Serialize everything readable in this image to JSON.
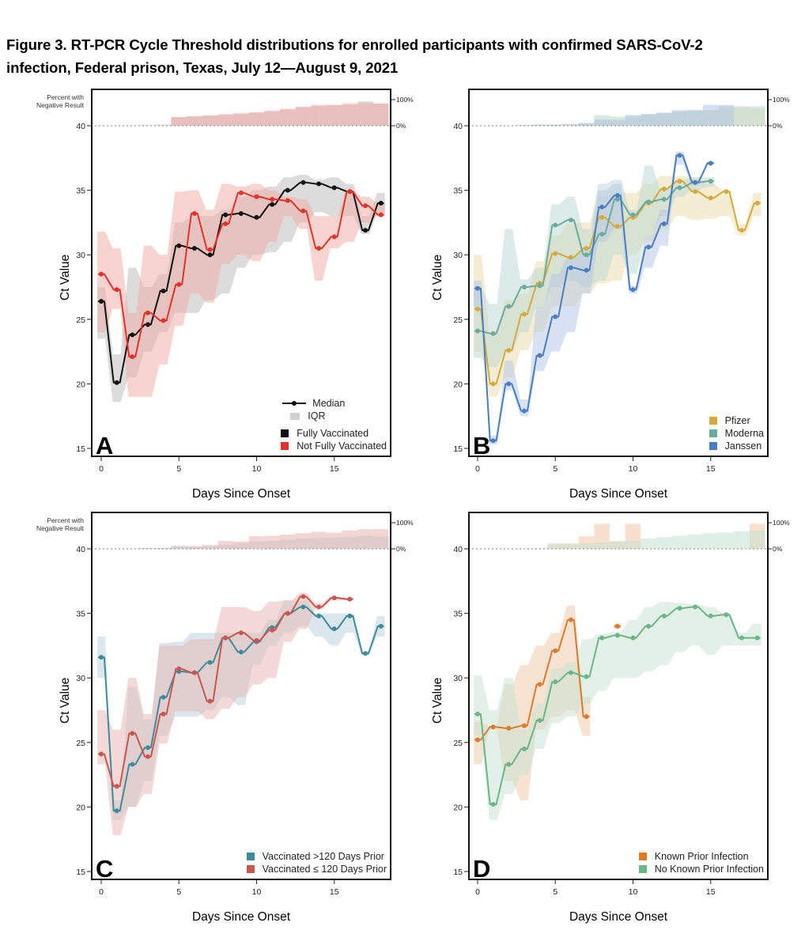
{
  "figure_title_line1": "Figure 3. RT-PCR Cycle Threshold distributions for enrolled participants with confirmed SARS-CoV-2",
  "figure_title_line2": "infection, Federal prison, Texas, July 12—August 9, 2021",
  "chart_data": [
    {
      "panel": "A",
      "type": "line",
      "xlabel": "Days Since Onset",
      "ylabel": "Ct Value",
      "top_label": "Percent with Negative Result",
      "right_ticks": [
        "100%",
        "0%"
      ],
      "xlim": [
        0,
        18
      ],
      "xticks": [
        0,
        5,
        10,
        15
      ],
      "ylim": [
        15,
        40
      ],
      "yticks": [
        15,
        20,
        25,
        30,
        35,
        40
      ],
      "legend_extra": {
        "median": "Median",
        "iqr": "IQR"
      },
      "series": [
        {
          "name": "Fully Vaccinated",
          "color": "#111111",
          "band": "#b9b9b9",
          "median": [
            26.4,
            20.1,
            23.8,
            24.6,
            27.2,
            30.7,
            30.5,
            30.0,
            33.1,
            33.2,
            32.9,
            33.9,
            35.0,
            35.6,
            35.5,
            35.2,
            34.9,
            31.9,
            34.0
          ],
          "iqr_low": [
            23.5,
            18.6,
            20.5,
            22.5,
            24.0,
            25.5,
            25.5,
            26.5,
            27.0,
            29.0,
            30.0,
            30.2,
            31.0,
            32.5,
            33.3,
            33.0,
            33.0,
            31.6,
            33.2
          ],
          "iqr_high": [
            27.5,
            22.3,
            29.0,
            27.5,
            28.5,
            32.5,
            33.0,
            33.0,
            33.5,
            34.5,
            35.0,
            35.3,
            36.0,
            36.2,
            35.8,
            36.0,
            35.5,
            33.0,
            34.8
          ],
          "pct_negative": [
            0,
            0,
            0,
            2,
            4,
            33,
            35,
            38,
            40,
            45,
            50,
            55,
            62,
            70,
            75,
            78,
            80,
            93,
            85
          ]
        },
        {
          "name": "Not Fully Vaccinated",
          "color": "#e53228",
          "band": "#f2a9a4",
          "median": [
            28.5,
            27.3,
            22.1,
            25.5,
            24.9,
            27.7,
            33.2,
            30.4,
            32.4,
            34.8,
            34.5,
            34.3,
            34.2,
            33.4,
            30.5,
            31.4,
            34.9,
            33.8,
            33.1
          ],
          "iqr_low": [
            24.0,
            25.8,
            19.0,
            19.0,
            21.5,
            24.5,
            27.0,
            26.3,
            29.3,
            30.0,
            29.5,
            31.0,
            33.0,
            32.0,
            28.0,
            30.5,
            31.0,
            32.5,
            33.0
          ],
          "iqr_high": [
            31.8,
            30.5,
            25.5,
            30.7,
            30.0,
            34.9,
            35.0,
            33.5,
            35.5,
            35.3,
            35.5,
            35.0,
            34.5,
            34.3,
            33.0,
            33.0,
            35.0,
            34.5,
            34.0
          ],
          "pct_negative": [
            0,
            0,
            0,
            0,
            0,
            33,
            37,
            40,
            45,
            48,
            52,
            58,
            65,
            73,
            80,
            80,
            86,
            86,
            86
          ]
        }
      ]
    },
    {
      "panel": "B",
      "type": "line",
      "xlabel": "Days Since Onset",
      "ylabel": "Ct Value",
      "right_ticks": [
        "100%",
        "0%"
      ],
      "xlim": [
        0,
        18
      ],
      "xticks": [
        0,
        5,
        10,
        15
      ],
      "ylim": [
        15,
        40
      ],
      "yticks": [
        15,
        20,
        25,
        30,
        35,
        40
      ],
      "series": [
        {
          "name": "Pfizer",
          "color": "#d4aa3c",
          "band": "#ecdca8",
          "median": [
            25.8,
            20.0,
            22.6,
            25.4,
            27.8,
            30.1,
            29.8,
            30.5,
            32.9,
            32.2,
            32.9,
            34.0,
            35.1,
            35.7,
            34.9,
            34.4,
            34.9,
            31.9,
            34.0
          ],
          "iqr_low": [
            22.5,
            19.0,
            20.5,
            22.6,
            24.0,
            26.0,
            26.0,
            27.0,
            27.8,
            28.0,
            30.0,
            31.0,
            32.0,
            33.0,
            32.7,
            32.8,
            33.0,
            31.5,
            33.0
          ],
          "iqr_high": [
            30.0,
            24.0,
            26.5,
            27.0,
            29.5,
            31.5,
            32.4,
            32.5,
            34.5,
            34.8,
            34.8,
            35.5,
            36.1,
            36.1,
            36.0,
            35.5,
            35.0,
            32.4,
            34.8
          ],
          "pct_negative": [
            0,
            0,
            0,
            2,
            3,
            5,
            7,
            8,
            20,
            25,
            30,
            40,
            45,
            55,
            60,
            60,
            70,
            70,
            65
          ]
        },
        {
          "name": "Moderna",
          "color": "#6aab9e",
          "band": "#b9d8d2",
          "median": [
            24.1,
            23.9,
            26.0,
            27.5,
            27.6,
            32.3,
            32.7,
            30.0,
            31.6,
            34.3,
            33.1,
            34.1,
            34.3,
            35.2,
            35.6,
            35.7
          ],
          "iqr_low": [
            22.0,
            21.3,
            22.5,
            24.0,
            26.0,
            27.5,
            28.0,
            27.5,
            28.0,
            30.0,
            28.5,
            31.5,
            33.0,
            34.5,
            35.0,
            35.3
          ],
          "iqr_high": [
            27.5,
            26.2,
            32.0,
            28.1,
            29.0,
            33.9,
            34.5,
            32.0,
            35.5,
            35.8,
            33.5,
            36.9,
            35.0,
            35.8,
            36.0,
            36.0
          ],
          "pct_negative": [
            0,
            0,
            0,
            3,
            5,
            5,
            7,
            10,
            40,
            35,
            40,
            45,
            50,
            55,
            58,
            60,
            75,
            75,
            75
          ]
        },
        {
          "name": "Janssen",
          "color": "#4a7dc2",
          "band": "#b3c6e6",
          "median": [
            27.4,
            15.6,
            20.0,
            17.9,
            22.2,
            25.2,
            29.0,
            28.8,
            33.7,
            34.6,
            27.3,
            30.6,
            32.4,
            37.7,
            35.6,
            37.1
          ],
          "iqr_low": [
            26.0,
            15.3,
            19.5,
            17.5,
            21.0,
            22.5,
            24.0,
            27.0,
            31.0,
            32.0,
            27.0,
            29.0,
            30.7,
            37.0,
            35.4,
            37.0
          ],
          "iqr_high": [
            28.0,
            16.0,
            21.8,
            18.8,
            26.0,
            28.5,
            29.9,
            30.5,
            35.0,
            35.5,
            27.6,
            31.5,
            33.5,
            38.0,
            35.8,
            37.2
          ],
          "pct_negative": [
            0,
            0,
            0,
            2,
            3,
            3,
            4,
            10,
            25,
            20,
            40,
            45,
            50,
            60,
            60,
            80,
            80,
            0,
            0
          ]
        }
      ]
    },
    {
      "panel": "C",
      "type": "line",
      "xlabel": "Days Since Onset",
      "ylabel": "Ct Value",
      "top_label": "Percent with Negative Result",
      "right_ticks": [
        "100%",
        "0%"
      ],
      "xlim": [
        0,
        18
      ],
      "xticks": [
        0,
        5,
        10,
        15
      ],
      "ylim": [
        15,
        40
      ],
      "yticks": [
        15,
        20,
        25,
        30,
        35,
        40
      ],
      "series": [
        {
          "name": "Vaccinated >120 Days Prior",
          "color": "#3e8b9b",
          "band": "#b7cedb",
          "median": [
            31.6,
            19.7,
            23.3,
            24.6,
            28.5,
            30.5,
            30.4,
            31.2,
            33.1,
            32.0,
            32.8,
            33.9,
            35.0,
            35.5,
            34.8,
            33.8,
            34.8,
            31.9,
            34.0
          ],
          "iqr_low": [
            30.0,
            19.0,
            20.0,
            22.0,
            25.5,
            27.0,
            27.0,
            27.5,
            28.5,
            27.9,
            31.0,
            32.5,
            33.5,
            34.0,
            33.2,
            32.5,
            33.5,
            31.8,
            33.2
          ],
          "iqr_high": [
            33.2,
            20.5,
            29.3,
            26.8,
            32.7,
            32.8,
            33.5,
            33.5,
            33.5,
            33.5,
            33.5,
            34.5,
            36.0,
            36.0,
            35.0,
            35.0,
            35.0,
            32.0,
            34.8
          ],
          "pct_negative": [
            0,
            0,
            0,
            2,
            3,
            12,
            8,
            10,
            15,
            22,
            28,
            30,
            35,
            40,
            42,
            43,
            45,
            50,
            47
          ]
        },
        {
          "name": "Vaccinated ≤ 120 Days Prior",
          "color": "#c9564f",
          "band": "#e8b5b1",
          "median": [
            24.1,
            21.6,
            25.7,
            23.9,
            27.2,
            30.7,
            30.4,
            28.2,
            33.1,
            33.5,
            32.9,
            33.7,
            35.0,
            36.3,
            35.5,
            36.2,
            36.1
          ],
          "iqr_low": [
            23.3,
            17.8,
            20.0,
            21.0,
            24.9,
            27.4,
            27.4,
            26.8,
            27.6,
            28.5,
            29.5,
            30.0,
            32.8,
            33.8,
            35.3,
            36.0,
            36.0
          ],
          "iqr_high": [
            27.5,
            26.0,
            30.0,
            27.2,
            32.5,
            32.5,
            33.0,
            33.0,
            35.5,
            35.5,
            35.2,
            35.9,
            36.0,
            36.6,
            35.8,
            36.3,
            36.2
          ],
          "pct_negative": [
            0,
            0,
            0,
            3,
            4,
            8,
            10,
            15,
            30,
            28,
            48,
            50,
            55,
            60,
            65,
            62,
            70,
            75,
            75
          ]
        }
      ]
    },
    {
      "panel": "D",
      "type": "line",
      "xlabel": "Days Since Onset",
      "ylabel": "Ct Value",
      "right_ticks": [
        "100%",
        "0%"
      ],
      "xlim": [
        0,
        18
      ],
      "xticks": [
        0,
        5,
        10,
        15
      ],
      "ylim": [
        15,
        40
      ],
      "yticks": [
        15,
        20,
        25,
        30,
        35,
        40
      ],
      "series": [
        {
          "name": "Known Prior Infection",
          "color": "#de7b2b",
          "band": "#f0c7a4",
          "median": [
            25.2,
            26.2,
            26.1,
            26.3,
            29.5,
            32.1,
            34.5,
            27.0,
            null,
            34.0
          ],
          "iqr_low": [
            23.3,
            26.0,
            22.0,
            20.5,
            26.0,
            27.0,
            27.5,
            25.5,
            null,
            33.8
          ],
          "iqr_high": [
            26.6,
            26.3,
            29.5,
            31.0,
            32.5,
            33.5,
            35.6,
            28.5,
            null,
            34.2
          ],
          "pct_negative": [
            0,
            0,
            0,
            0,
            0,
            20,
            20,
            48,
            96,
            30,
            96,
            0,
            0,
            0,
            0,
            0,
            0,
            0,
            96
          ]
        },
        {
          "name": "No Known Prior Infection",
          "color": "#6bb586",
          "band": "#c5e2d0",
          "median": [
            27.2,
            20.2,
            23.3,
            24.5,
            26.7,
            29.7,
            30.4,
            30.1,
            33.1,
            33.3,
            33.1,
            34.0,
            34.8,
            35.4,
            35.5,
            34.8,
            34.9,
            33.1,
            33.1
          ],
          "iqr_low": [
            25.5,
            19.0,
            21.0,
            22.5,
            24.5,
            26.5,
            27.0,
            28.0,
            29.0,
            30.0,
            30.0,
            30.5,
            31.0,
            32.0,
            32.5,
            31.8,
            32.5,
            32.5,
            32.5
          ],
          "iqr_high": [
            30.2,
            27.5,
            30.0,
            26.0,
            28.0,
            30.7,
            31.2,
            33.0,
            33.4,
            33.6,
            34.5,
            35.5,
            35.9,
            35.8,
            35.7,
            35.5,
            35.0,
            33.5,
            34.2
          ],
          "pct_negative": [
            0,
            0,
            0,
            2,
            2,
            20,
            20,
            22,
            25,
            28,
            30,
            40,
            45,
            50,
            55,
            60,
            62,
            68,
            70
          ]
        }
      ]
    }
  ]
}
